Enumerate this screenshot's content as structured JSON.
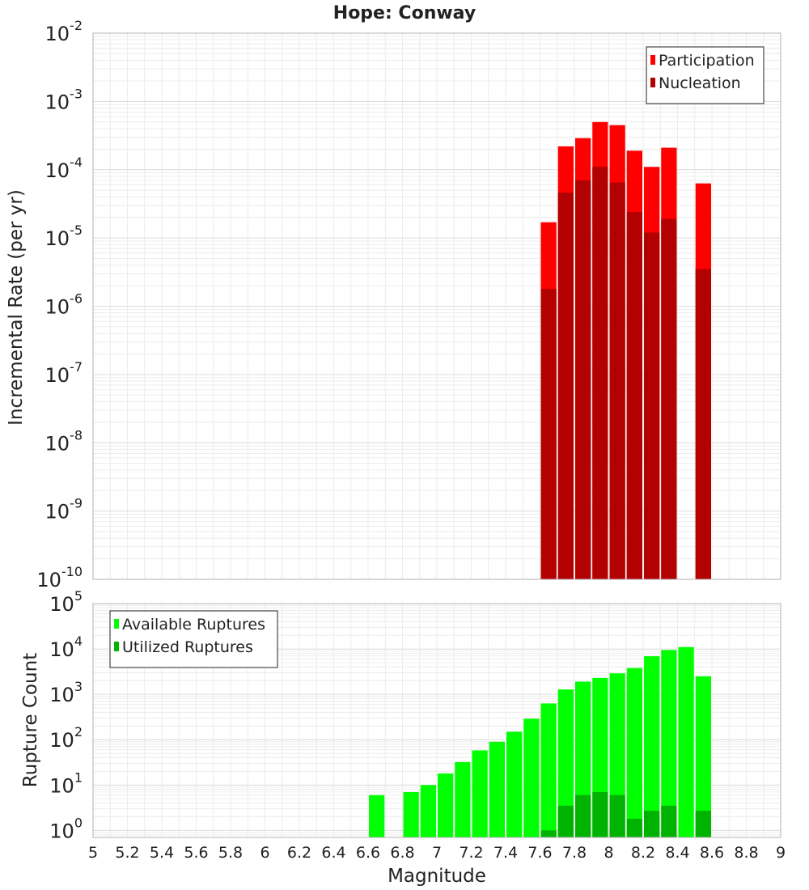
{
  "chart_data": [
    {
      "type": "bar",
      "title": "Hope: Conway",
      "xlabel": "",
      "ylabel": "Incremental Rate (per yr)",
      "xlim": [
        5,
        9
      ],
      "ylim": [
        1e-10,
        0.01
      ],
      "yscale": "log",
      "y_tick_exponents": [
        "-10",
        "-9",
        "-8",
        "-7",
        "-6",
        "-5",
        "-4",
        "-3",
        "-2"
      ],
      "bin_width": 0.1,
      "legend_position": "top-right",
      "series": [
        {
          "name": "Participation",
          "color": "#ff0000",
          "x": [
            7.65,
            7.75,
            7.85,
            7.95,
            8.05,
            8.15,
            8.25,
            8.35,
            8.55
          ],
          "values": [
            1.7e-05,
            0.00022,
            0.00029,
            0.0005,
            0.00045,
            0.00019,
            0.00011,
            0.00021,
            6.3e-05
          ]
        },
        {
          "name": "Nucleation",
          "color": "#b30000",
          "x": [
            7.65,
            7.75,
            7.85,
            7.95,
            8.05,
            8.15,
            8.25,
            8.35,
            8.55
          ],
          "values": [
            1.8e-06,
            4.6e-05,
            7e-05,
            0.00011,
            6.5e-05,
            2.4e-05,
            1.2e-05,
            1.9e-05,
            3.5e-06
          ]
        }
      ]
    },
    {
      "type": "bar",
      "title": "",
      "xlabel": "Magnitude",
      "ylabel": "Rupture Count",
      "xlim": [
        5,
        9
      ],
      "ylim": [
        0.7,
        100000.0
      ],
      "yscale": "log",
      "y_tick_exponents": [
        "0",
        "1",
        "2",
        "3",
        "4",
        "5"
      ],
      "x_ticks": [
        "5",
        "5.2",
        "5.4",
        "5.6",
        "5.8",
        "6",
        "6.2",
        "6.4",
        "6.6",
        "6.8",
        "7",
        "7.2",
        "7.4",
        "7.6",
        "7.8",
        "8",
        "8.2",
        "8.4",
        "8.6",
        "8.8",
        "9"
      ],
      "bin_width": 0.1,
      "legend_position": "top-left",
      "series": [
        {
          "name": "Available Ruptures",
          "color": "#00ff00",
          "x": [
            6.65,
            6.85,
            6.95,
            7.05,
            7.15,
            7.25,
            7.35,
            7.45,
            7.55,
            7.65,
            7.75,
            7.85,
            7.95,
            8.05,
            8.15,
            8.25,
            8.35,
            8.45,
            8.55
          ],
          "values": [
            6,
            7,
            10,
            18,
            32,
            58,
            90,
            150,
            290,
            630,
            1280,
            1900,
            2300,
            2900,
            3800,
            6900,
            9500,
            11000,
            2500
          ]
        },
        {
          "name": "Utilized Ruptures",
          "color": "#00b300",
          "x": [
            7.65,
            7.75,
            7.85,
            7.95,
            8.05,
            8.15,
            8.25,
            8.35,
            8.55
          ],
          "values": [
            1,
            3.5,
            6,
            7,
            6,
            1.8,
            2.7,
            3.5,
            2.7
          ]
        }
      ]
    }
  ]
}
